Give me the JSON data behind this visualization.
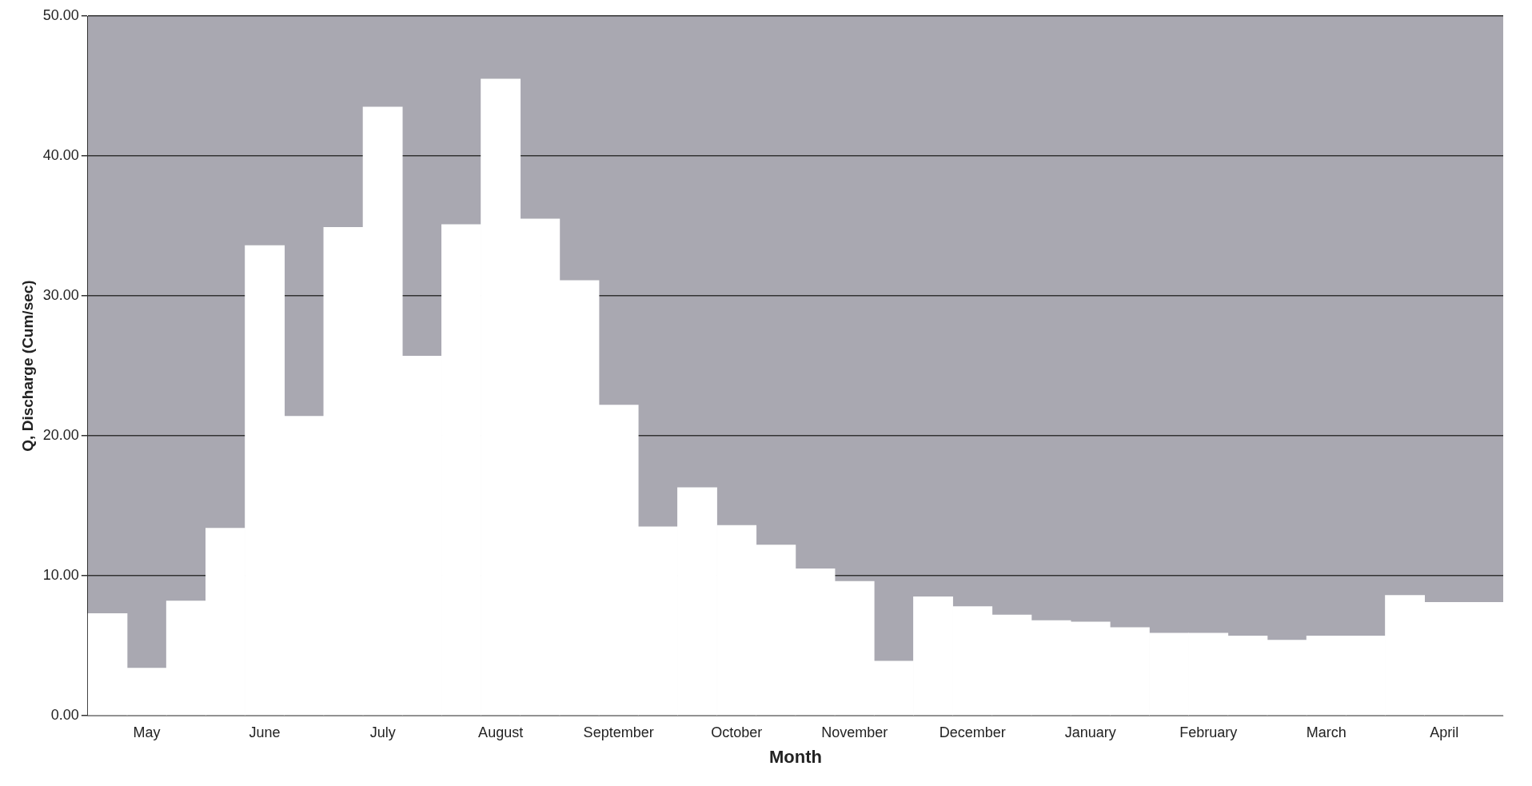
{
  "chart_data": {
    "type": "bar",
    "xlabel": "Month",
    "ylabel": "Q, Discharge (Cum/sec)",
    "categories": [
      null,
      "May",
      null,
      null,
      "June",
      null,
      null,
      "July",
      null,
      null,
      "August",
      null,
      null,
      "September",
      null,
      null,
      "October",
      null,
      null,
      "November",
      null,
      null,
      "December",
      null,
      null,
      "January",
      null,
      null,
      "February",
      null,
      null,
      "March",
      null,
      null,
      "April",
      null
    ],
    "values": [
      7.3,
      3.4,
      8.2,
      13.4,
      33.6,
      21.4,
      34.9,
      43.5,
      25.7,
      35.1,
      45.5,
      35.5,
      31.1,
      22.2,
      13.5,
      16.3,
      13.6,
      12.2,
      10.5,
      9.6,
      3.9,
      8.5,
      7.8,
      7.2,
      6.8,
      6.7,
      6.3,
      5.9,
      5.9,
      5.7,
      5.4,
      5.7,
      5.7,
      8.6,
      8.1,
      8.1
    ],
    "color": "#ffffff",
    "ylim": [
      0,
      50
    ],
    "yticks": [
      {
        "value": 0,
        "label": "0.00"
      },
      {
        "value": 10,
        "label": "10.00"
      },
      {
        "value": 20,
        "label": "20.00"
      },
      {
        "value": 30,
        "label": "30.00"
      },
      {
        "value": 40,
        "label": "40.00"
      },
      {
        "value": 50,
        "label": "50.00"
      }
    ],
    "grid": "y",
    "legend": false
  }
}
